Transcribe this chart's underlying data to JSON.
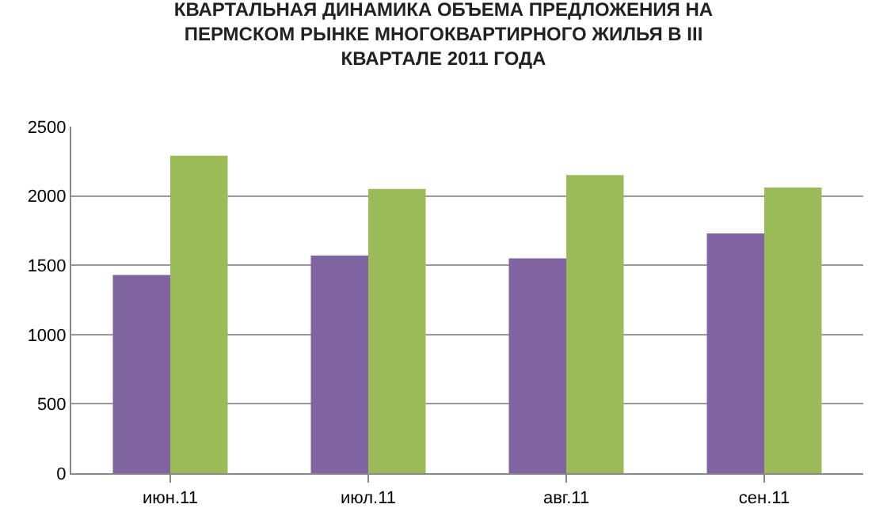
{
  "chart_data": {
    "type": "bar",
    "title": "КВАРТАЛЬНАЯ ДИНАМИКА ОБЪЕМА ПРЕДЛОЖЕНИЯ НА\nПЕРМСКОМ РЫНКЕ МНОГОКВАРТИРНОГО ЖИЛЬЯ В III\nКВАРТАЛЕ 2011 ГОДА",
    "categories": [
      "июн.11",
      "июл.11",
      "авг.11",
      "сен.11"
    ],
    "series": [
      {
        "color": "#8064a2",
        "values": [
          1430,
          1570,
          1550,
          1730
        ]
      },
      {
        "color": "#9bbb59",
        "values": [
          2290,
          2050,
          2150,
          2060
        ]
      }
    ],
    "ylim": [
      0,
      2500
    ],
    "yticks": [
      0,
      500,
      1000,
      1500,
      2000,
      2500
    ],
    "grid": "y"
  }
}
